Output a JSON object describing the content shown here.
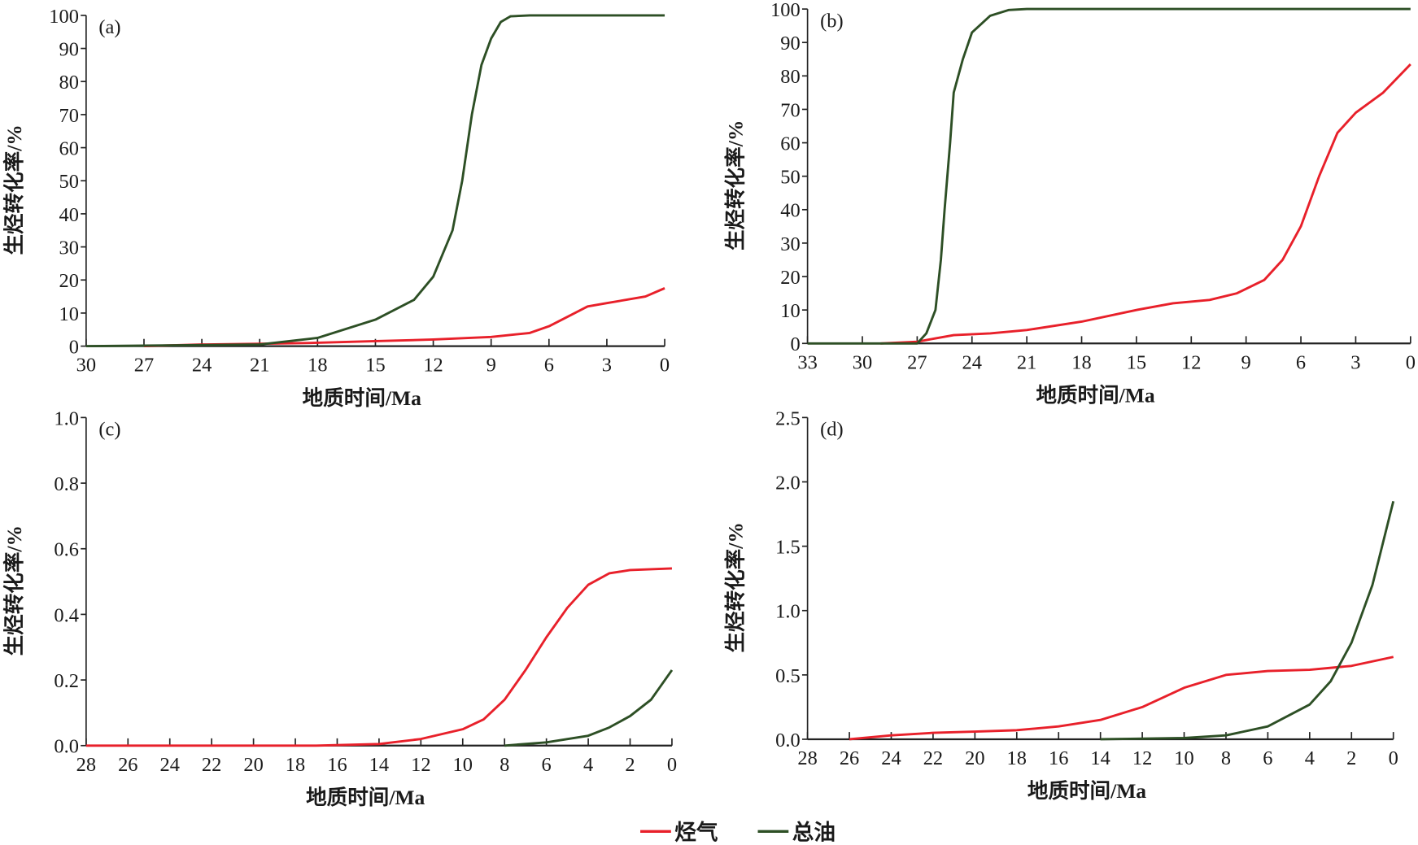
{
  "chart_data": [
    {
      "type": "line",
      "panel": "(a)",
      "xlabel": "地质时间/Ma",
      "ylabel": "生烃转化率/%",
      "xlim": [
        30,
        0
      ],
      "ylim": [
        0,
        100
      ],
      "xticks": [
        30,
        27,
        24,
        21,
        18,
        15,
        12,
        9,
        6,
        3,
        0
      ],
      "yticks": [
        0,
        10,
        20,
        30,
        40,
        50,
        60,
        70,
        80,
        90,
        100
      ],
      "ytick_labels": [
        "0",
        "10",
        "20",
        "30",
        "40",
        "50",
        "60",
        "70",
        "80",
        "90",
        "100"
      ],
      "series": [
        {
          "name": "烃气",
          "color": "#e8202a",
          "x": [
            27,
            24,
            21,
            18,
            15,
            12,
            9,
            7,
            6,
            5,
            4,
            3,
            1,
            0
          ],
          "y": [
            0,
            0.5,
            0.7,
            1,
            1.5,
            2,
            2.8,
            4,
            6,
            9,
            12,
            13,
            15,
            17.5
          ]
        },
        {
          "name": "总油",
          "color": "#2d4f25",
          "x": [
            30,
            21,
            18,
            15,
            13,
            12,
            11,
            10.5,
            10,
            9.5,
            9,
            8.5,
            8,
            7,
            0
          ],
          "y": [
            0,
            0.5,
            2.5,
            8,
            14,
            21,
            35,
            50,
            70,
            85,
            93,
            98,
            99.7,
            100,
            100
          ]
        }
      ]
    },
    {
      "type": "line",
      "panel": "(b)",
      "xlabel": "地质时间/Ma",
      "ylabel": "生烃转化率/%",
      "xlim": [
        33,
        0
      ],
      "ylim": [
        0,
        100
      ],
      "xticks": [
        33,
        30,
        27,
        24,
        21,
        18,
        15,
        12,
        9,
        6,
        3,
        0
      ],
      "yticks": [
        0,
        10,
        20,
        30,
        40,
        50,
        60,
        70,
        80,
        90,
        100
      ],
      "ytick_labels": [
        "0",
        "10",
        "20",
        "30",
        "40",
        "50",
        "60",
        "70",
        "80",
        "90",
        "100"
      ],
      "series": [
        {
          "name": "烃气",
          "color": "#e8202a",
          "x": [
            29,
            27,
            26,
            25,
            23,
            21,
            18,
            15,
            13,
            11,
            9.5,
            8,
            7,
            6,
            5,
            4,
            3,
            1.5,
            0
          ],
          "y": [
            0,
            0.5,
            1.5,
            2.5,
            3,
            4,
            6.5,
            10,
            12,
            13,
            15,
            19,
            25,
            35,
            50,
            63,
            69,
            75,
            83.5
          ]
        },
        {
          "name": "总油",
          "color": "#2d4f25",
          "x": [
            33,
            27,
            26.5,
            26,
            25.7,
            25.5,
            25.2,
            25,
            24.5,
            24,
            23,
            22,
            21,
            0
          ],
          "y": [
            0,
            0,
            3,
            10,
            25,
            40,
            60,
            75,
            85,
            93,
            98,
            99.7,
            100,
            100
          ]
        }
      ]
    },
    {
      "type": "line",
      "panel": "(c)",
      "xlabel": "地质时间/Ma",
      "ylabel": "生烃转化率/%",
      "xlim": [
        28,
        0
      ],
      "ylim": [
        0,
        1.0
      ],
      "xticks": [
        28,
        26,
        24,
        22,
        20,
        18,
        16,
        14,
        12,
        10,
        8,
        6,
        4,
        2,
        0
      ],
      "yticks": [
        0,
        0.2,
        0.4,
        0.6,
        0.8,
        1.0
      ],
      "ytick_labels": [
        "0.0",
        "0.2",
        "0.4",
        "0.6",
        "0.8",
        "1.0"
      ],
      "series": [
        {
          "name": "烃气",
          "color": "#e8202a",
          "x": [
            28,
            17,
            14,
            12,
            10,
            9,
            8,
            7,
            6,
            5,
            4,
            3,
            2,
            0
          ],
          "y": [
            0,
            0,
            0.005,
            0.02,
            0.05,
            0.08,
            0.14,
            0.23,
            0.33,
            0.42,
            0.49,
            0.525,
            0.535,
            0.54
          ]
        },
        {
          "name": "总油",
          "color": "#2d4f25",
          "x": [
            8,
            6,
            4,
            3,
            2,
            1,
            0
          ],
          "y": [
            0,
            0.01,
            0.03,
            0.055,
            0.09,
            0.14,
            0.23
          ]
        }
      ]
    },
    {
      "type": "line",
      "panel": "(d)",
      "xlabel": "地质时间/Ma",
      "ylabel": "生烃转化率/%",
      "xlim": [
        28,
        0
      ],
      "ylim": [
        0,
        2.5
      ],
      "xticks": [
        28,
        26,
        24,
        22,
        20,
        18,
        16,
        14,
        12,
        10,
        8,
        6,
        4,
        2,
        0
      ],
      "yticks": [
        0,
        0.5,
        1.0,
        1.5,
        2.0,
        2.5
      ],
      "ytick_labels": [
        "0.0",
        "0.5",
        "1.0",
        "1.5",
        "2.0",
        "2.5"
      ],
      "series": [
        {
          "name": "烃气",
          "color": "#e8202a",
          "x": [
            26,
            24,
            22,
            20,
            18,
            16,
            14,
            12,
            10,
            8,
            6,
            4,
            2,
            0
          ],
          "y": [
            0,
            0.03,
            0.05,
            0.06,
            0.07,
            0.1,
            0.15,
            0.25,
            0.4,
            0.5,
            0.53,
            0.54,
            0.57,
            0.64
          ]
        },
        {
          "name": "总油",
          "color": "#2d4f25",
          "x": [
            14,
            10,
            8,
            6,
            4,
            3,
            2,
            1,
            0
          ],
          "y": [
            0,
            0.01,
            0.03,
            0.1,
            0.27,
            0.45,
            0.75,
            1.2,
            1.85
          ]
        }
      ]
    }
  ],
  "legend": [
    {
      "label": "烃气",
      "color": "#e8202a"
    },
    {
      "label": "总油",
      "color": "#2d4f25"
    }
  ]
}
